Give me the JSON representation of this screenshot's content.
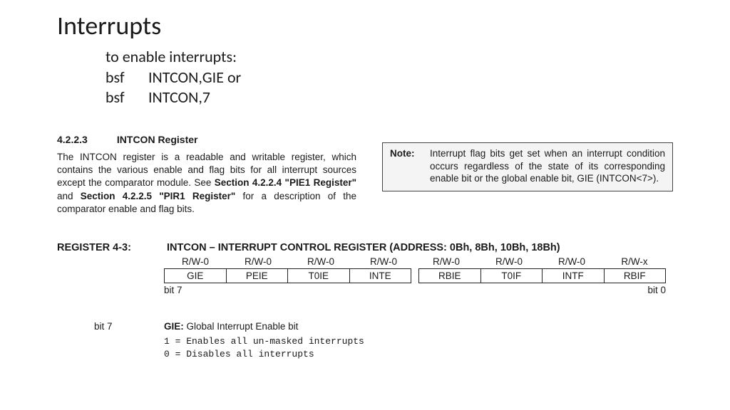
{
  "title": "Interrupts",
  "intro": {
    "line1": "to enable interrupts:",
    "row1_mn": "bsf",
    "row1_op": "INTCON,GIE   or",
    "row2_mn": "bsf",
    "row2_op": "INTCON,7"
  },
  "section": {
    "num": "4.2.2.3",
    "name": "INTCON Register",
    "body_a": "The INTCON register is a readable and writable register, which contains the various enable and flag bits for all interrupt sources except the comparator module. See ",
    "body_b1": "Section 4.2.2.4 \"PIE1 Register\"",
    "body_c": " and ",
    "body_b2": "Section 4.2.2.5 \"PIR1 Register\"",
    "body_d": " for a description of the comparator enable and flag bits."
  },
  "note": {
    "label": "Note:",
    "text": "Interrupt flag bits get set when an interrupt condition occurs regardless of the state of its corresponding enable bit or the global enable bit, GIE (INTCON<7>)."
  },
  "register": {
    "label": "REGISTER 4-3:",
    "title": "INTCON – INTERRUPT CONTROL REGISTER (ADDRESS: 0Bh, 8Bh, 10Bh, 18Bh)",
    "rw": [
      "R/W-0",
      "R/W-0",
      "R/W-0",
      "R/W-0",
      "R/W-0",
      "R/W-0",
      "R/W-0",
      "R/W-x"
    ],
    "bits": [
      "GIE",
      "PEIE",
      "T0IE",
      "INTE",
      "RBIE",
      "T0IF",
      "INTF",
      "RBIF"
    ],
    "left_label": "bit 7",
    "right_label": "bit 0"
  },
  "bitdesc": {
    "bitnum": "bit 7",
    "name": "GIE:",
    "desc": " Global Interrupt Enable bit",
    "v1": "1 = Enables all un-masked interrupts",
    "v0": "0 = Disables all interrupts"
  },
  "colors": {
    "text": "#1a1a1a",
    "border": "#222222",
    "note_bg": "#f4f4f4",
    "page_bg": "#ffffff"
  }
}
